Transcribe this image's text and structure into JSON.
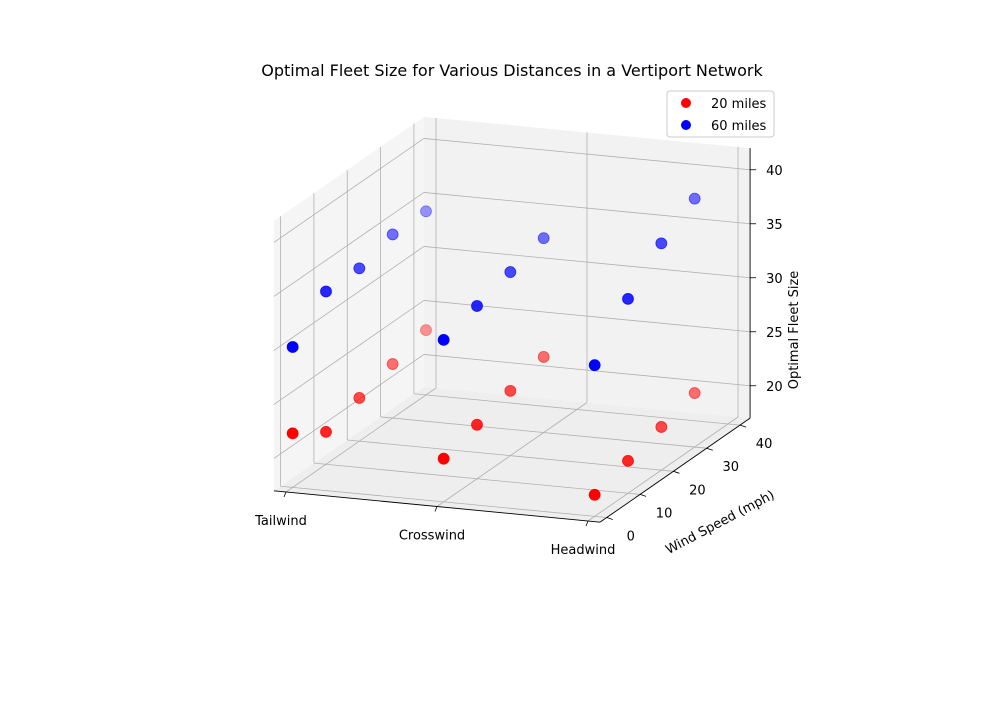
{
  "chart_data": {
    "type": "scatter",
    "projection": "3d",
    "title": "Optimal Fleet Size for Various Distances in a Vertiport Network",
    "xlabel": "",
    "ylabel": "Wind Speed (mph)",
    "zlabel": "Optimal Fleet Size",
    "x_categories": [
      "Tailwind",
      "Crosswind",
      "Headwind"
    ],
    "y_ticks": [
      0,
      10,
      20,
      30,
      40
    ],
    "z_ticks": [
      20,
      25,
      30,
      35,
      40
    ],
    "ylim": [
      0,
      40
    ],
    "zlim": [
      17,
      42
    ],
    "grid": true,
    "legend_position": "top-right",
    "series": [
      {
        "name": "20 miles",
        "color": "#ff0000",
        "points": [
          {
            "x": "Tailwind",
            "y": 0,
            "z": 22
          },
          {
            "x": "Tailwind",
            "y": 10,
            "z": 20
          },
          {
            "x": "Tailwind",
            "y": 20,
            "z": 21
          },
          {
            "x": "Tailwind",
            "y": 30,
            "z": 22
          },
          {
            "x": "Tailwind",
            "y": 40,
            "z": 23
          },
          {
            "x": "Crosswind",
            "y": 0,
            "z": 21
          },
          {
            "x": "Crosswind",
            "y": 10,
            "z": 22
          },
          {
            "x": "Crosswind",
            "y": 20,
            "z": 23
          },
          {
            "x": "Crosswind",
            "y": 30,
            "z": 24
          },
          {
            "x": "Headwind",
            "y": 0,
            "z": 19
          },
          {
            "x": "Headwind",
            "y": 10,
            "z": 20
          },
          {
            "x": "Headwind",
            "y": 20,
            "z": 21
          },
          {
            "x": "Headwind",
            "y": 30,
            "z": 22
          }
        ]
      },
      {
        "name": "60 miles",
        "color": "#0000ff",
        "points": [
          {
            "x": "Tailwind",
            "y": 0,
            "z": 30
          },
          {
            "x": "Tailwind",
            "y": 10,
            "z": 33
          },
          {
            "x": "Tailwind",
            "y": 20,
            "z": 33
          },
          {
            "x": "Tailwind",
            "y": 30,
            "z": 34
          },
          {
            "x": "Tailwind",
            "y": 40,
            "z": 34
          },
          {
            "x": "Crosswind",
            "y": 0,
            "z": 32
          },
          {
            "x": "Crosswind",
            "y": 10,
            "z": 33
          },
          {
            "x": "Crosswind",
            "y": 20,
            "z": 34
          },
          {
            "x": "Crosswind",
            "y": 30,
            "z": 35
          },
          {
            "x": "Headwind",
            "y": 0,
            "z": 31
          },
          {
            "x": "Headwind",
            "y": 10,
            "z": 35
          },
          {
            "x": "Headwind",
            "y": 20,
            "z": 38
          },
          {
            "x": "Headwind",
            "y": 30,
            "z": 40
          }
        ]
      }
    ]
  }
}
